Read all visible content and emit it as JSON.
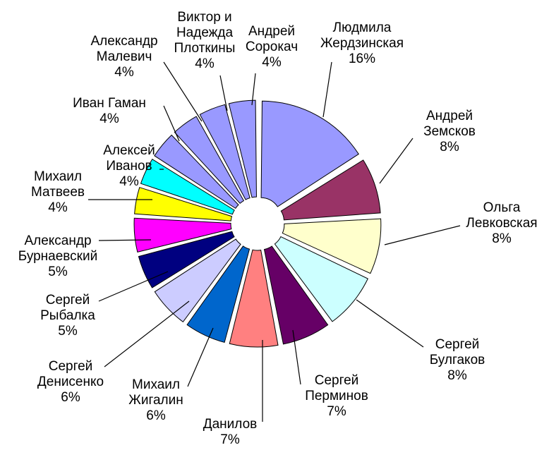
{
  "chart_data": {
    "type": "pie",
    "title": "",
    "legend": "none",
    "slices": [
      {
        "lines": [
          "Людмила",
          "Жердзинская"
        ],
        "pct_label": "16%",
        "value": 16,
        "color": "#9999ff"
      },
      {
        "lines": [
          "Андрей",
          "Земсков"
        ],
        "pct_label": "8%",
        "value": 8,
        "color": "#993366"
      },
      {
        "lines": [
          "Ольга",
          "Левковская"
        ],
        "pct_label": "8%",
        "value": 8,
        "color": "#ffffcc"
      },
      {
        "lines": [
          "Сергей",
          "Булгаков"
        ],
        "pct_label": "8%",
        "value": 8,
        "color": "#ccffff"
      },
      {
        "lines": [
          "Сергей",
          "Перминов"
        ],
        "pct_label": "7%",
        "value": 7,
        "color": "#660066"
      },
      {
        "lines": [
          "Данилов"
        ],
        "pct_label": "7%",
        "value": 7,
        "color": "#ff8080"
      },
      {
        "lines": [
          "Михаил",
          "Жигалин"
        ],
        "pct_label": "6%",
        "value": 6,
        "color": "#0066cc"
      },
      {
        "lines": [
          "Сергей",
          "Денисенко"
        ],
        "pct_label": "6%",
        "value": 6,
        "color": "#ccccff"
      },
      {
        "lines": [
          "Сергей",
          "Рыбалка"
        ],
        "pct_label": "5%",
        "value": 5,
        "color": "#000080"
      },
      {
        "lines": [
          "Александр",
          "Бурнаевский"
        ],
        "pct_label": "5%",
        "value": 5,
        "color": "#ff00ff"
      },
      {
        "lines": [
          "Михаил",
          "Матвеев"
        ],
        "pct_label": "4%",
        "value": 4,
        "color": "#ffff00"
      },
      {
        "lines": [
          "Алексей",
          "Иванов"
        ],
        "pct_label": "4%",
        "value": 4,
        "color": "#00ffff"
      },
      {
        "lines": [
          "Иван Гаман"
        ],
        "pct_label": "4%",
        "value": 4,
        "color": "#9999ff"
      },
      {
        "lines": [
          "Александр",
          "Малевич"
        ],
        "pct_label": "4%",
        "value": 4,
        "color": "#9999ff"
      },
      {
        "lines": [
          "Виктор и",
          "Надежда",
          "Плоткины"
        ],
        "pct_label": "4%",
        "value": 4,
        "color": "#9999ff"
      },
      {
        "lines": [
          "Андрей",
          "Сорокач"
        ],
        "pct_label": "4%",
        "value": 4,
        "color": "#9999ff"
      }
    ]
  }
}
